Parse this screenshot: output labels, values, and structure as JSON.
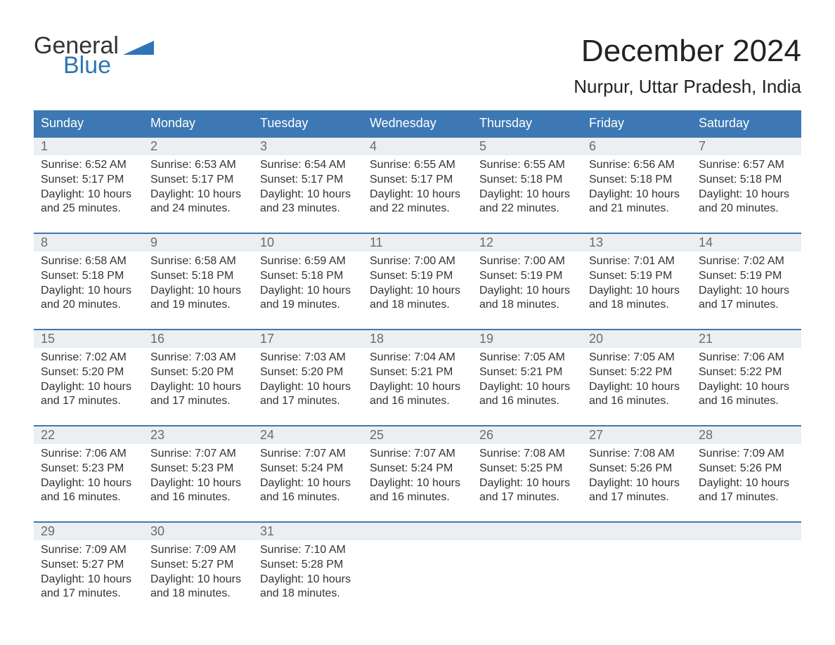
{
  "brand": {
    "word1": "General",
    "word2": "Blue",
    "color_accent": "#2e75b6"
  },
  "title": "December 2024",
  "location": "Nurpur, Uttar Pradesh, India",
  "colors": {
    "header_bg": "#3d78b5",
    "header_text": "#ffffff",
    "daynum_bg": "#eceff1",
    "daynum_text": "#6b6b6b",
    "body_text": "#333333",
    "week_border": "#3d78b5",
    "page_bg": "#ffffff"
  },
  "weekdays": [
    "Sunday",
    "Monday",
    "Tuesday",
    "Wednesday",
    "Thursday",
    "Friday",
    "Saturday"
  ],
  "labels": {
    "sunrise": "Sunrise:",
    "sunset": "Sunset:",
    "daylight": "Daylight:"
  },
  "weeks": [
    [
      {
        "day": "1",
        "sunrise": "6:52 AM",
        "sunset": "5:17 PM",
        "daylight": "10 hours and 25 minutes."
      },
      {
        "day": "2",
        "sunrise": "6:53 AM",
        "sunset": "5:17 PM",
        "daylight": "10 hours and 24 minutes."
      },
      {
        "day": "3",
        "sunrise": "6:54 AM",
        "sunset": "5:17 PM",
        "daylight": "10 hours and 23 minutes."
      },
      {
        "day": "4",
        "sunrise": "6:55 AM",
        "sunset": "5:17 PM",
        "daylight": "10 hours and 22 minutes."
      },
      {
        "day": "5",
        "sunrise": "6:55 AM",
        "sunset": "5:18 PM",
        "daylight": "10 hours and 22 minutes."
      },
      {
        "day": "6",
        "sunrise": "6:56 AM",
        "sunset": "5:18 PM",
        "daylight": "10 hours and 21 minutes."
      },
      {
        "day": "7",
        "sunrise": "6:57 AM",
        "sunset": "5:18 PM",
        "daylight": "10 hours and 20 minutes."
      }
    ],
    [
      {
        "day": "8",
        "sunrise": "6:58 AM",
        "sunset": "5:18 PM",
        "daylight": "10 hours and 20 minutes."
      },
      {
        "day": "9",
        "sunrise": "6:58 AM",
        "sunset": "5:18 PM",
        "daylight": "10 hours and 19 minutes."
      },
      {
        "day": "10",
        "sunrise": "6:59 AM",
        "sunset": "5:18 PM",
        "daylight": "10 hours and 19 minutes."
      },
      {
        "day": "11",
        "sunrise": "7:00 AM",
        "sunset": "5:19 PM",
        "daylight": "10 hours and 18 minutes."
      },
      {
        "day": "12",
        "sunrise": "7:00 AM",
        "sunset": "5:19 PM",
        "daylight": "10 hours and 18 minutes."
      },
      {
        "day": "13",
        "sunrise": "7:01 AM",
        "sunset": "5:19 PM",
        "daylight": "10 hours and 18 minutes."
      },
      {
        "day": "14",
        "sunrise": "7:02 AM",
        "sunset": "5:19 PM",
        "daylight": "10 hours and 17 minutes."
      }
    ],
    [
      {
        "day": "15",
        "sunrise": "7:02 AM",
        "sunset": "5:20 PM",
        "daylight": "10 hours and 17 minutes."
      },
      {
        "day": "16",
        "sunrise": "7:03 AM",
        "sunset": "5:20 PM",
        "daylight": "10 hours and 17 minutes."
      },
      {
        "day": "17",
        "sunrise": "7:03 AM",
        "sunset": "5:20 PM",
        "daylight": "10 hours and 17 minutes."
      },
      {
        "day": "18",
        "sunrise": "7:04 AM",
        "sunset": "5:21 PM",
        "daylight": "10 hours and 16 minutes."
      },
      {
        "day": "19",
        "sunrise": "7:05 AM",
        "sunset": "5:21 PM",
        "daylight": "10 hours and 16 minutes."
      },
      {
        "day": "20",
        "sunrise": "7:05 AM",
        "sunset": "5:22 PM",
        "daylight": "10 hours and 16 minutes."
      },
      {
        "day": "21",
        "sunrise": "7:06 AM",
        "sunset": "5:22 PM",
        "daylight": "10 hours and 16 minutes."
      }
    ],
    [
      {
        "day": "22",
        "sunrise": "7:06 AM",
        "sunset": "5:23 PM",
        "daylight": "10 hours and 16 minutes."
      },
      {
        "day": "23",
        "sunrise": "7:07 AM",
        "sunset": "5:23 PM",
        "daylight": "10 hours and 16 minutes."
      },
      {
        "day": "24",
        "sunrise": "7:07 AM",
        "sunset": "5:24 PM",
        "daylight": "10 hours and 16 minutes."
      },
      {
        "day": "25",
        "sunrise": "7:07 AM",
        "sunset": "5:24 PM",
        "daylight": "10 hours and 16 minutes."
      },
      {
        "day": "26",
        "sunrise": "7:08 AM",
        "sunset": "5:25 PM",
        "daylight": "10 hours and 17 minutes."
      },
      {
        "day": "27",
        "sunrise": "7:08 AM",
        "sunset": "5:26 PM",
        "daylight": "10 hours and 17 minutes."
      },
      {
        "day": "28",
        "sunrise": "7:09 AM",
        "sunset": "5:26 PM",
        "daylight": "10 hours and 17 minutes."
      }
    ],
    [
      {
        "day": "29",
        "sunrise": "7:09 AM",
        "sunset": "5:27 PM",
        "daylight": "10 hours and 17 minutes."
      },
      {
        "day": "30",
        "sunrise": "7:09 AM",
        "sunset": "5:27 PM",
        "daylight": "10 hours and 18 minutes."
      },
      {
        "day": "31",
        "sunrise": "7:10 AM",
        "sunset": "5:28 PM",
        "daylight": "10 hours and 18 minutes."
      },
      null,
      null,
      null,
      null
    ]
  ]
}
